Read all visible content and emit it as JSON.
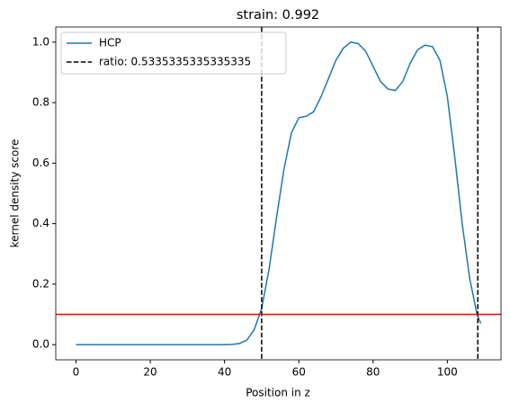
{
  "chart_data": {
    "type": "line",
    "title": "strain: 0.992",
    "xlabel": "Position in z",
    "ylabel": "kernel density score",
    "x": [
      0,
      4,
      8,
      12,
      16,
      20,
      24,
      28,
      32,
      36,
      40,
      42,
      44,
      46,
      48,
      50,
      52,
      54,
      56,
      58,
      60,
      62,
      64,
      66,
      68,
      70,
      72,
      74,
      76,
      78,
      80,
      82,
      84,
      86,
      88,
      90,
      92,
      94,
      96,
      98,
      100,
      102,
      104,
      106,
      108,
      109
    ],
    "series": [
      {
        "name": "HCP",
        "color": "#1f77b4",
        "values": [
          0,
          0,
          0,
          0,
          0,
          0,
          0,
          0,
          0,
          0,
          0,
          0.001,
          0.004,
          0.015,
          0.05,
          0.12,
          0.25,
          0.42,
          0.58,
          0.7,
          0.75,
          0.755,
          0.77,
          0.82,
          0.88,
          0.94,
          0.98,
          1.0,
          0.995,
          0.97,
          0.92,
          0.87,
          0.845,
          0.84,
          0.87,
          0.93,
          0.975,
          0.99,
          0.985,
          0.94,
          0.82,
          0.62,
          0.4,
          0.22,
          0.1,
          0.07
        ]
      }
    ],
    "vlines": {
      "name": "ratio: 0.5335335335335335",
      "color": "#000000",
      "values": [
        50,
        108.2
      ]
    },
    "hline": {
      "color": "#ff0000",
      "value": 0.1
    },
    "xlim": [
      -5.45,
      114.45
    ],
    "ylim": [
      -0.05,
      1.05
    ],
    "xticks": [
      0,
      20,
      40,
      60,
      80,
      100
    ],
    "yticks": [
      {
        "value": 0,
        "label": "0.0"
      },
      0.2,
      0.4,
      0.6,
      0.8,
      {
        "value": 1,
        "label": "1.0"
      }
    ],
    "legend": "upper left",
    "grid": false
  }
}
